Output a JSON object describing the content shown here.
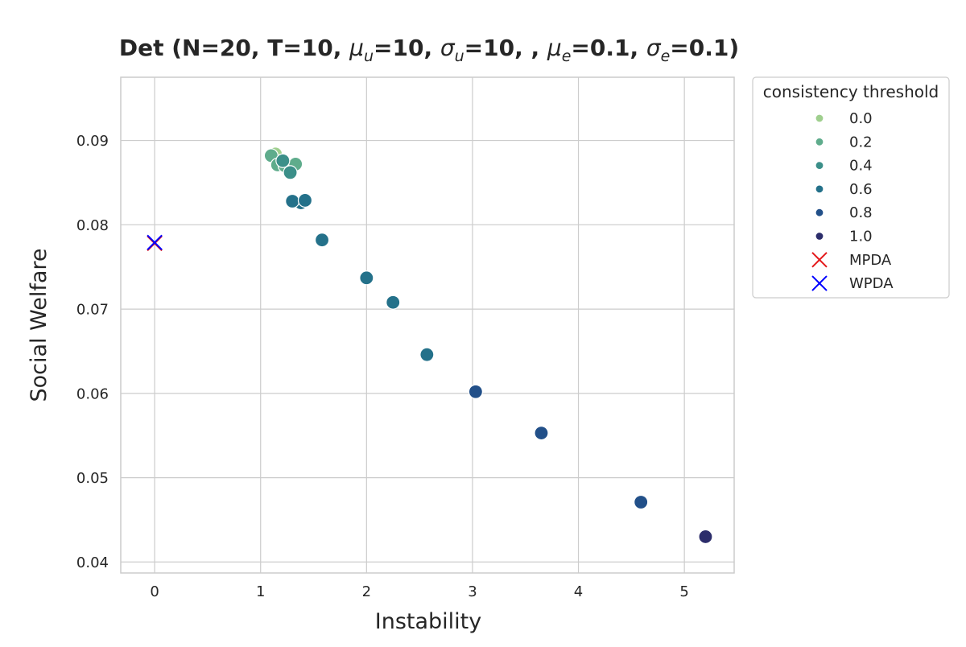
{
  "chart_data": {
    "type": "scatter",
    "title": "Det (N=20, T=10, μu=10, σu=10, , μe=0.1, σe=0.1)",
    "title_parts": {
      "prefix": "Det (N=20, T=10, ",
      "mu_u_symbol": "μ",
      "mu_u_sub": "u",
      "mu_u_value": "=10, ",
      "sigma_u_symbol": "σ",
      "sigma_u_sub": "u",
      "sigma_u_value": "=10, , ",
      "mu_e_symbol": "μ",
      "mu_e_sub": "e",
      "mu_e_value": "=0.1, ",
      "sigma_e_symbol": "σ",
      "sigma_e_sub": "e",
      "sigma_e_value": "=0.1)"
    },
    "xlabel": "Instability",
    "ylabel": "Social Welfare",
    "xlim": [
      -0.32,
      5.47
    ],
    "ylim": [
      0.0387,
      0.0975
    ],
    "xticks": [
      0,
      1,
      2,
      3,
      4,
      5
    ],
    "xtick_labels": [
      "0",
      "1",
      "2",
      "3",
      "4",
      "5"
    ],
    "yticks": [
      0.04,
      0.05,
      0.06,
      0.07,
      0.08,
      0.09
    ],
    "ytick_labels": [
      "0.04",
      "0.05",
      "0.06",
      "0.07",
      "0.08",
      "0.09"
    ],
    "grid": true,
    "legend": {
      "title": "consistency threshold",
      "placement": "outside-top-right",
      "entries": [
        {
          "label": "0.0",
          "marker": "dot",
          "color": "#9fcf8e"
        },
        {
          "label": "0.2",
          "marker": "dot",
          "color": "#5fac8c"
        },
        {
          "label": "0.4",
          "marker": "dot",
          "color": "#3b8f89"
        },
        {
          "label": "0.6",
          "marker": "dot",
          "color": "#24718a"
        },
        {
          "label": "0.8",
          "marker": "dot",
          "color": "#225089"
        },
        {
          "label": "1.0",
          "marker": "dot",
          "color": "#2c2d6b"
        },
        {
          "label": "MPDA",
          "marker": "x",
          "color": "#e41a1c"
        },
        {
          "label": "WPDA",
          "marker": "x",
          "color": "#0000ff"
        }
      ]
    },
    "series": [
      {
        "threshold": 0.0,
        "color": "#9fcf8e",
        "points": [
          [
            1.12,
            0.0883
          ],
          [
            1.14,
            0.0884
          ]
        ]
      },
      {
        "threshold": 0.2,
        "color": "#5fac8c",
        "points": [
          [
            1.1,
            0.0882
          ],
          [
            1.16,
            0.0871
          ],
          [
            1.23,
            0.087
          ],
          [
            1.33,
            0.0872
          ]
        ]
      },
      {
        "threshold": 0.4,
        "color": "#3b8f89",
        "points": [
          [
            1.21,
            0.0876
          ],
          [
            1.28,
            0.0862
          ]
        ]
      },
      {
        "threshold": 0.6,
        "color": "#24718a",
        "points": [
          [
            1.38,
            0.0826
          ],
          [
            1.3,
            0.0828
          ],
          [
            1.42,
            0.0829
          ],
          [
            1.58,
            0.0782
          ],
          [
            2.0,
            0.0737
          ],
          [
            2.25,
            0.0708
          ],
          [
            2.57,
            0.0646
          ]
        ]
      },
      {
        "threshold": 0.8,
        "color": "#225089",
        "points": [
          [
            3.03,
            0.0602
          ],
          [
            3.65,
            0.0553
          ],
          [
            4.59,
            0.0471
          ]
        ]
      },
      {
        "threshold": 1.0,
        "color": "#2c2d6b",
        "points": [
          [
            5.2,
            0.043
          ]
        ]
      }
    ],
    "baselines": [
      {
        "name": "MPDA",
        "marker": "x",
        "color": "#e41a1c",
        "x": 0.0,
        "y": 0.0778
      },
      {
        "name": "WPDA",
        "marker": "x",
        "color": "#0000ff",
        "x": 0.0,
        "y": 0.0779
      }
    ]
  }
}
